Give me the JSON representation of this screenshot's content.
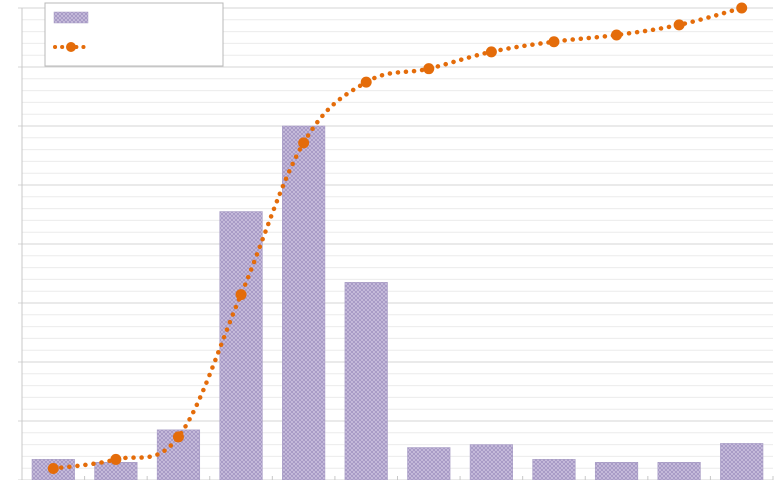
{
  "chart_data": {
    "type": "bar",
    "title": "",
    "xlabel": "",
    "ylabel": "",
    "ylim": [
      0,
      8
    ],
    "y2lim": [
      0,
      1.4
    ],
    "grid": true,
    "legend": "top-left",
    "categories": [
      "",
      "",
      "",
      "",
      "",
      "",
      "",
      "",
      "",
      "",
      "",
      ""
    ],
    "series": [
      {
        "kind": "bar",
        "name": "",
        "color": "#b4a9cc",
        "values": [
          0.35,
          0.3,
          0.85,
          4.55,
          6.0,
          3.35,
          0.55,
          0.6,
          0.35,
          0.3,
          0.3,
          0.62
        ]
      },
      {
        "kind": "line",
        "name": "",
        "color": "#e46c0a",
        "axis": "secondary",
        "values": [
          0.034,
          0.061,
          0.128,
          0.55,
          1.0,
          1.18,
          1.22,
          1.27,
          1.3,
          1.32,
          1.35,
          1.4
        ]
      }
    ]
  }
}
